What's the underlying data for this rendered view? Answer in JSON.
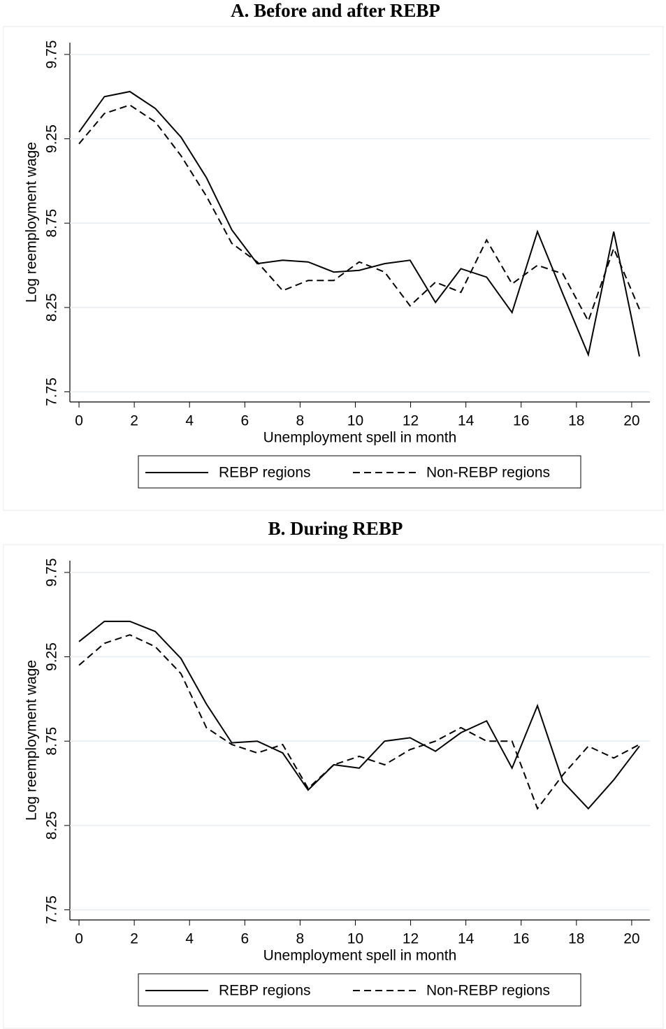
{
  "chart_data": [
    {
      "type": "line",
      "title": "A. Before and after REBP",
      "x_label": "Unemployment spell in month",
      "y_label": "Log reemployment wage",
      "x": [
        0,
        0.92,
        1.84,
        2.76,
        3.69,
        4.61,
        5.53,
        6.45,
        7.37,
        8.29,
        9.22,
        10.14,
        11.06,
        11.98,
        12.9,
        13.82,
        14.75,
        15.67,
        16.59,
        17.51,
        18.43,
        19.35,
        20.28
      ],
      "series": [
        {
          "name": "REBP regions",
          "color": "#000000",
          "line_style": "solid",
          "values": [
            9.29,
            9.5,
            9.53,
            9.43,
            9.26,
            9.02,
            8.71,
            8.51,
            8.53,
            8.52,
            8.46,
            8.47,
            8.51,
            8.53,
            8.28,
            8.48,
            8.43,
            8.22,
            8.7,
            8.33,
            7.97,
            8.7,
            7.96
          ]
        },
        {
          "name": "Non-REBP regions",
          "color": "#000000",
          "line_style": "dashed",
          "values": [
            9.22,
            9.4,
            9.45,
            9.35,
            9.15,
            8.91,
            8.63,
            8.52,
            8.35,
            8.41,
            8.41,
            8.52,
            8.46,
            8.26,
            8.4,
            8.34,
            8.65,
            8.39,
            8.5,
            8.45,
            8.17,
            8.6,
            8.24
          ]
        }
      ],
      "xlim": [
        -0.33,
        20.66
      ],
      "xticks": [
        0,
        2,
        4,
        6,
        8,
        10,
        12,
        14,
        16,
        18,
        20
      ],
      "ylim": [
        7.69,
        9.82
      ],
      "yticks": [
        7.75,
        8.25,
        8.75,
        9.25,
        9.75
      ],
      "grid": true
    },
    {
      "type": "line",
      "title": "B. During REBP",
      "x_label": "Unemployment spell in month",
      "y_label": "Log reemployment wage",
      "x": [
        0,
        0.92,
        1.84,
        2.76,
        3.69,
        4.61,
        5.53,
        6.45,
        7.37,
        8.29,
        9.22,
        10.14,
        11.06,
        11.98,
        12.9,
        13.82,
        14.75,
        15.67,
        16.59,
        17.51,
        18.43,
        19.35,
        20.28
      ],
      "series": [
        {
          "name": "REBP regions",
          "color": "#000000",
          "line_style": "solid",
          "values": [
            9.34,
            9.46,
            9.46,
            9.4,
            9.24,
            8.97,
            8.74,
            8.75,
            8.68,
            8.46,
            8.61,
            8.59,
            8.75,
            8.77,
            8.69,
            8.8,
            8.87,
            8.59,
            8.96,
            8.51,
            8.35,
            8.52,
            8.72
          ]
        },
        {
          "name": "Non-REBP regions",
          "color": "#000000",
          "line_style": "dashed",
          "values": [
            9.2,
            9.33,
            9.38,
            9.31,
            9.15,
            8.83,
            8.73,
            8.68,
            8.73,
            8.47,
            8.61,
            8.66,
            8.61,
            8.7,
            8.75,
            8.83,
            8.75,
            8.75,
            8.35,
            8.55,
            8.72,
            8.65,
            8.73
          ]
        }
      ],
      "xlim": [
        -0.33,
        20.66
      ],
      "xticks": [
        0,
        2,
        4,
        6,
        8,
        10,
        12,
        14,
        16,
        18,
        20
      ],
      "ylim": [
        7.69,
        9.82
      ],
      "yticks": [
        7.75,
        8.25,
        8.75,
        9.25,
        9.75
      ],
      "grid": true
    }
  ]
}
